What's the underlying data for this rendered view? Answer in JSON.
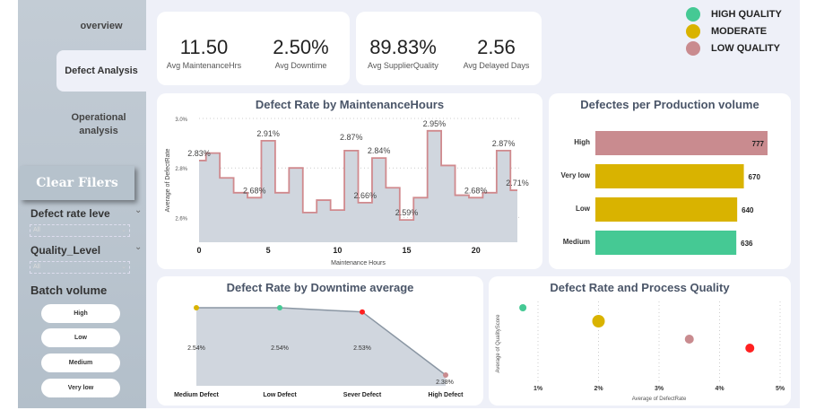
{
  "nav": {
    "overview": "overview",
    "defect": "Defect Analysis",
    "operational": "Operational analysis"
  },
  "filters": {
    "clear": "Clear Filers",
    "defect_rate_label": "Defect rate leve",
    "defect_rate_value": "All",
    "quality_label": "Quality_Level",
    "quality_value": "All",
    "batch_label": "Batch volume",
    "batch_options": [
      "High",
      "Low",
      "Medium",
      "Very low"
    ]
  },
  "kpis": [
    {
      "value": "11.50",
      "label": "Avg MaintenanceHrs"
    },
    {
      "value": "2.50%",
      "label": "Avg Downtime"
    },
    {
      "value": "89.83%",
      "label": "Avg SupplierQuality"
    },
    {
      "value": "2.56",
      "label": "Avg Delayed Days"
    }
  ],
  "legend": [
    {
      "label": "HIGH QUALITY",
      "color": "#45c994"
    },
    {
      "label": "MODERATE",
      "color": "#d9b300"
    },
    {
      "label": "LOW QUALITY",
      "color": "#c98b8f"
    }
  ],
  "chart_data": [
    {
      "type": "line",
      "title": "Defect Rate by MaintenanceHours",
      "xlabel": "Maintenance Hours",
      "ylabel": "Average of DefectRate",
      "step": true,
      "area": true,
      "x": [
        0,
        1,
        2,
        3,
        4,
        5,
        6,
        7,
        8,
        9,
        10,
        11,
        12,
        13,
        14,
        15,
        16,
        17,
        18,
        19,
        20,
        21,
        22,
        23
      ],
      "values": [
        2.83,
        2.86,
        2.76,
        2.7,
        2.68,
        2.91,
        2.7,
        2.8,
        2.62,
        2.67,
        2.63,
        2.87,
        2.66,
        2.84,
        2.72,
        2.59,
        2.68,
        2.95,
        2.81,
        2.69,
        2.68,
        2.7,
        2.87,
        2.71
      ],
      "labeled": [
        0,
        4,
        5,
        11,
        12,
        13,
        15,
        17,
        20,
        22,
        23
      ],
      "ylim": [
        2.5,
        3.0
      ],
      "yticks": [
        "2.6%",
        "2.8%",
        "3.0%"
      ],
      "ytick_values": [
        2.6,
        2.8,
        3.0
      ],
      "xticks": [
        "0",
        "5",
        "10",
        "15",
        "20"
      ],
      "grid": true,
      "line_color": "#d08a8e",
      "fill_color": "#d0d6de"
    },
    {
      "type": "bar",
      "orientation": "horizontal",
      "title": "Defectes per Production volume",
      "categories": [
        "High",
        "Very low",
        "Low",
        "Medium"
      ],
      "values": [
        777,
        670,
        640,
        636
      ],
      "colors": [
        "#c98b8f",
        "#d9b300",
        "#d9b300",
        "#45c994"
      ]
    },
    {
      "type": "area",
      "title": "Defect Rate by Downtime average",
      "categories": [
        "Medium Defect",
        "Low Defect",
        "Sever Defect",
        "High Defect"
      ],
      "values": [
        2.54,
        2.54,
        2.53,
        2.38
      ],
      "labels": [
        "2.54%",
        "2.54%",
        "2.53%",
        "2.38%"
      ],
      "colors": [
        "#d9b300",
        "#45c994",
        "#ff2020",
        "#c98b8f"
      ]
    },
    {
      "type": "scatter",
      "title": "Defect Rate and Process Quality",
      "xlabel": "Average of DefectRate",
      "ylabel": "Average of QualityScore",
      "xticks": [
        "1%",
        "2%",
        "3%",
        "4%",
        "5%"
      ],
      "xlim": [
        0.5,
        5
      ],
      "points": [
        {
          "x": 0.75,
          "y": 0.95,
          "size": 4,
          "color": "#45c994"
        },
        {
          "x": 2.0,
          "y": 0.8,
          "size": 7,
          "color": "#d9b300"
        },
        {
          "x": 3.5,
          "y": 0.6,
          "size": 5,
          "color": "#c98b8f"
        },
        {
          "x": 4.5,
          "y": 0.5,
          "size": 5,
          "color": "#ff2020"
        }
      ]
    }
  ]
}
